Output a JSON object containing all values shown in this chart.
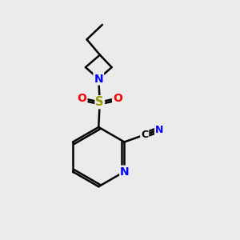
{
  "background_color": "#ebebeb",
  "bond_color": "#000000",
  "bond_width": 1.8,
  "atom_colors": {
    "N": "#0000FF",
    "S": "#999900",
    "O": "#FF0000",
    "C": "#000000"
  },
  "figsize": [
    3.0,
    3.0
  ],
  "dpi": 100,
  "xlim": [
    0,
    10
  ],
  "ylim": [
    0,
    10
  ]
}
